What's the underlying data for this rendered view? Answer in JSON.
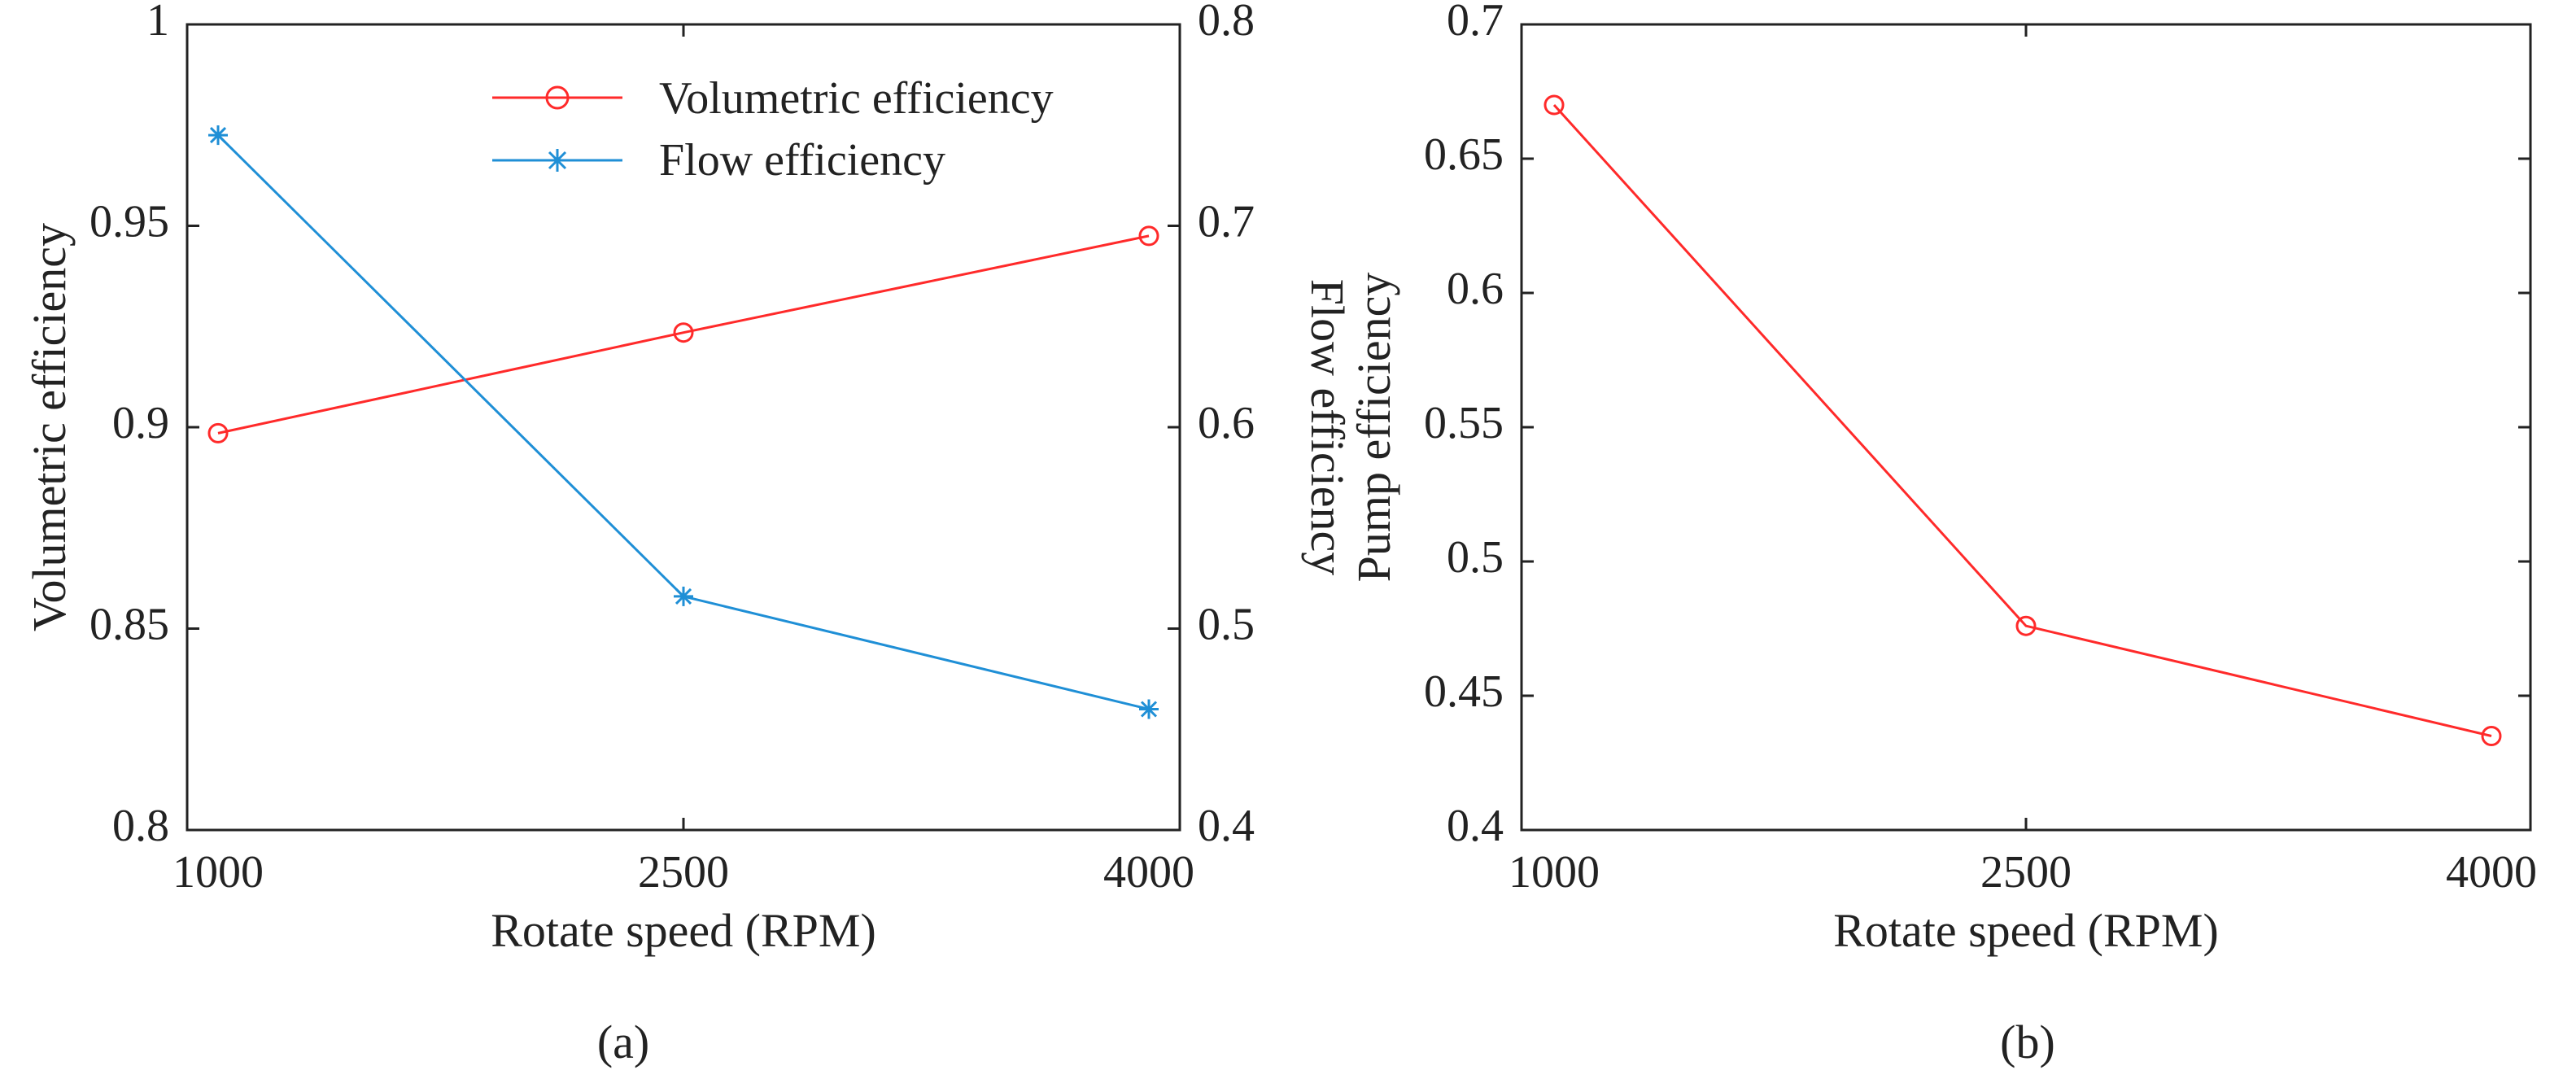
{
  "colors": {
    "volumetric": "#ff2a2a",
    "flow": "#1f8fd6",
    "pump": "#ff2a2a",
    "axis": "#222222"
  },
  "chart_data": [
    {
      "id": "a",
      "type": "line",
      "panel_label": "(a)",
      "xlabel": "Rotate speed (RPM)",
      "ylabel_left": "Volumetric efficiency",
      "ylabel_right": "Flow efficiency",
      "x": [
        1000,
        2500,
        4000
      ],
      "x_ticks": [
        "1000",
        "2500",
        "4000"
      ],
      "xlim": [
        900,
        4100
      ],
      "ylim_left": [
        0.8,
        1.0
      ],
      "y_ticks_left": [
        "0.8",
        "0.85",
        "0.9",
        "0.95",
        "1"
      ],
      "ylim_right": [
        0.4,
        0.8
      ],
      "y_ticks_right": [
        "0.4",
        "0.5",
        "0.6",
        "0.7",
        "0.8"
      ],
      "legend_position": "top-right",
      "series": [
        {
          "name": "Volumetric efficiency",
          "axis": "left",
          "marker": "circle",
          "values": [
            0.8985,
            0.9235,
            0.9475
          ]
        },
        {
          "name": "Flow efficiency",
          "axis": "right",
          "marker": "asterisk",
          "values": [
            0.745,
            0.516,
            0.46
          ]
        }
      ]
    },
    {
      "id": "b",
      "type": "line",
      "panel_label": "(b)",
      "xlabel": "Rotate speed (RPM)",
      "ylabel_left": "Pump efficiency",
      "x": [
        1000,
        2500,
        4000
      ],
      "x_ticks": [
        "1000",
        "2500",
        "4000"
      ],
      "xlim": [
        900,
        4100
      ],
      "ylim_left": [
        0.4,
        0.7
      ],
      "y_ticks_left": [
        "0.4",
        "0.45",
        "0.5",
        "0.55",
        "0.6",
        "0.65",
        "0.7"
      ],
      "series": [
        {
          "name": "Pump efficiency",
          "axis": "left",
          "marker": "circle",
          "values": [
            0.67,
            0.476,
            0.435
          ]
        }
      ]
    }
  ]
}
